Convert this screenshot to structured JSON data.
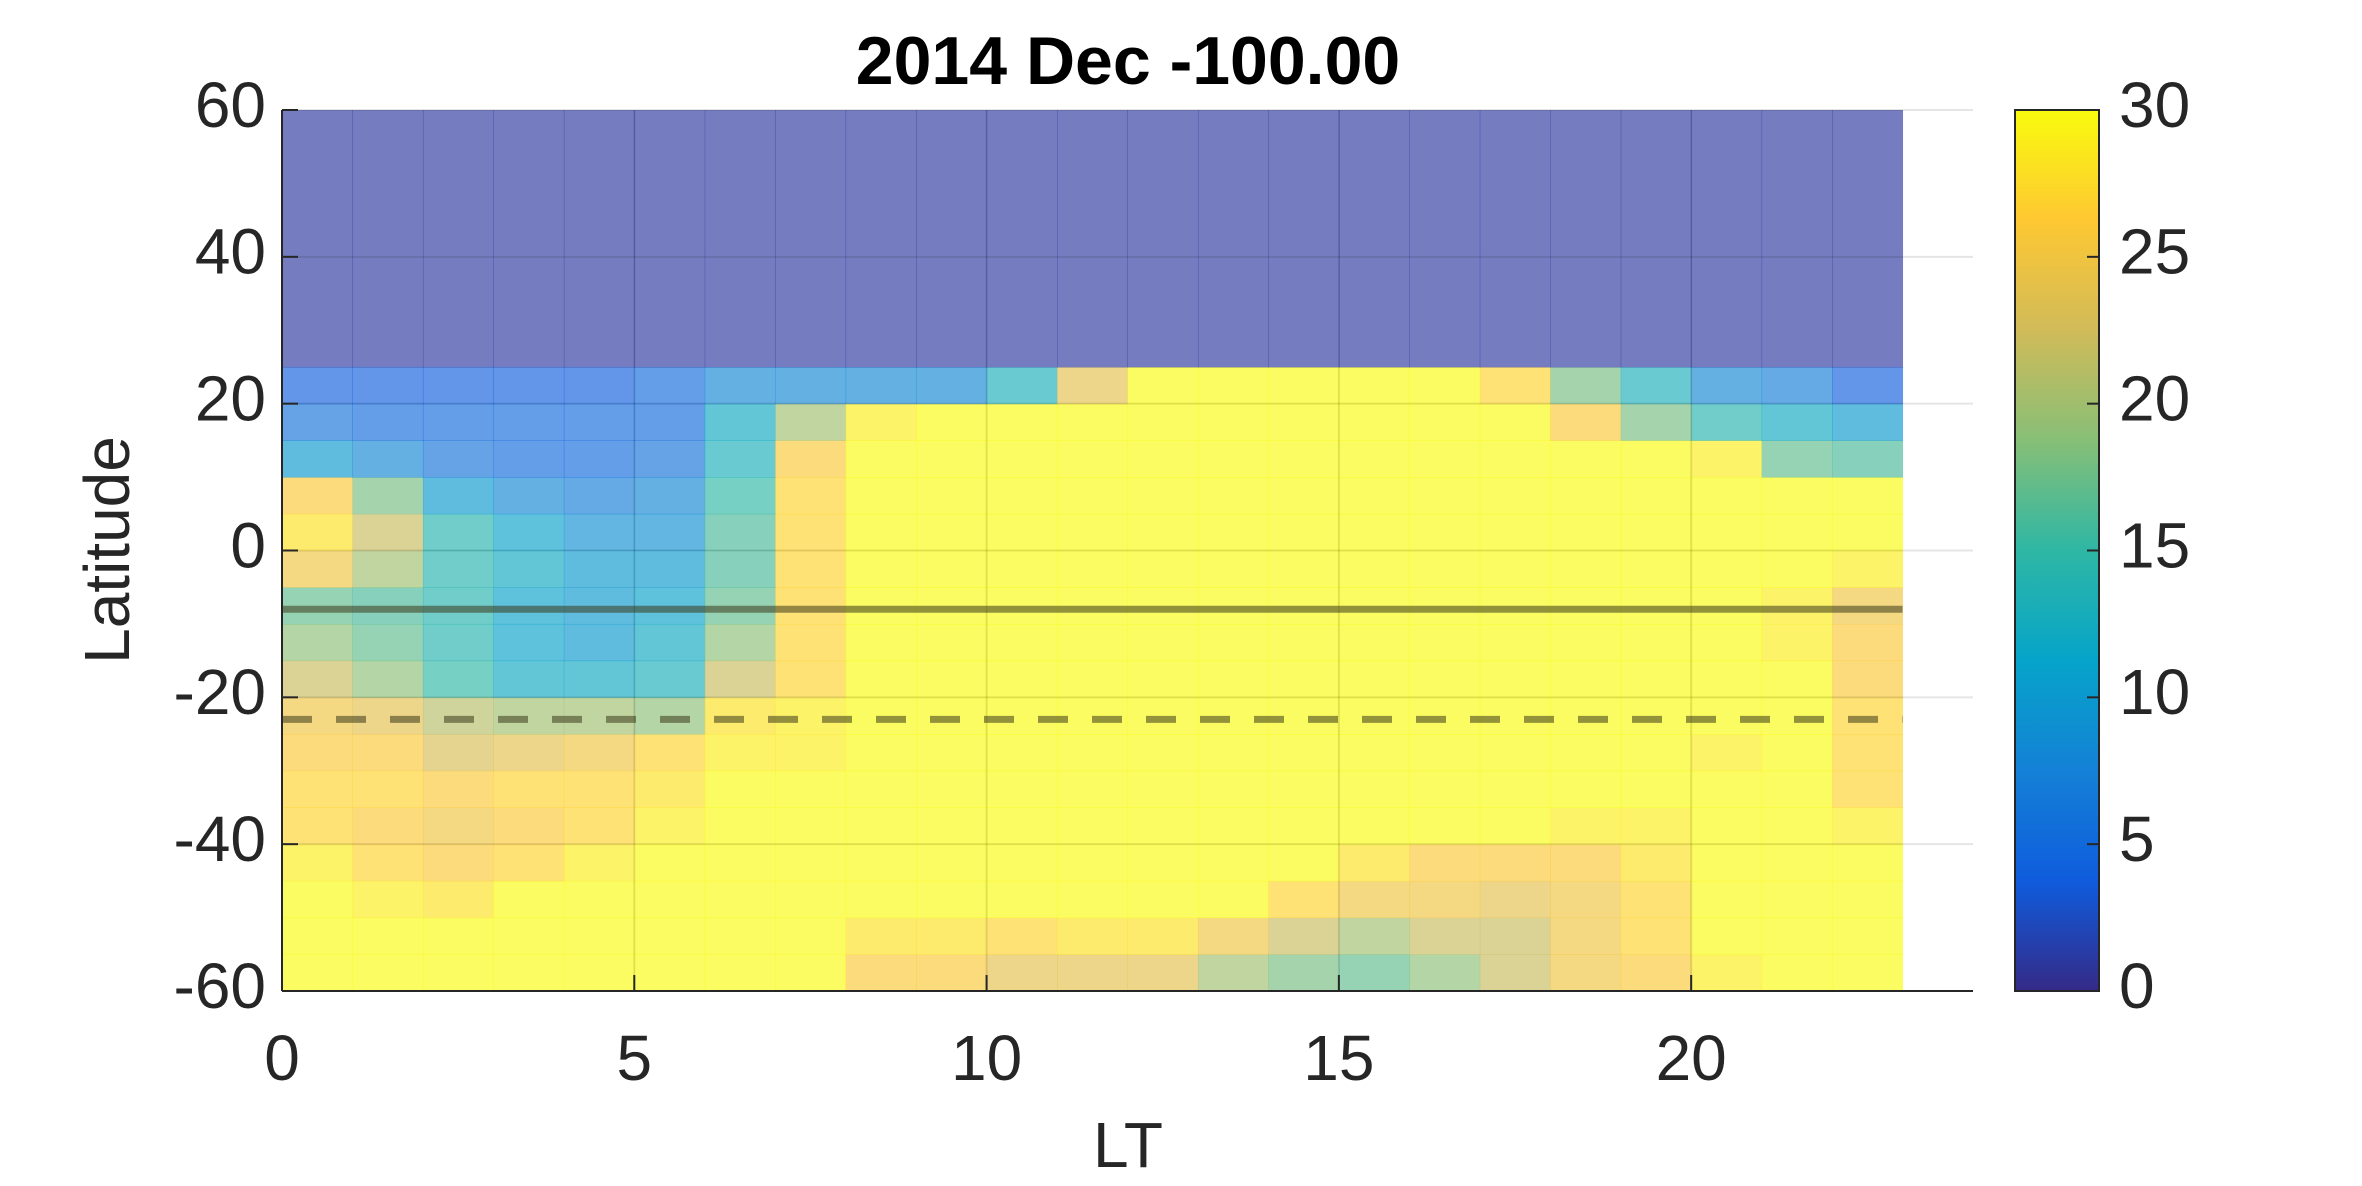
{
  "chart_data": {
    "type": "heatmap",
    "title": "2014 Dec   -100.00",
    "xlabel": "LT",
    "ylabel": "Latitude",
    "xbins": [
      0,
      1,
      2,
      3,
      4,
      5,
      6,
      7,
      8,
      9,
      10,
      11,
      12,
      13,
      14,
      15,
      16,
      17,
      18,
      19,
      20,
      21,
      22,
      23
    ],
    "ybins": [
      -60,
      -55,
      -50,
      -45,
      -40,
      -35,
      -30,
      -25,
      -20,
      -15,
      -10,
      -5,
      0,
      5,
      10,
      15,
      20,
      25,
      60
    ],
    "z": [
      [
        30,
        30,
        30,
        30,
        30,
        30,
        30,
        30,
        26,
        26,
        24,
        24,
        24,
        20,
        18,
        17,
        19,
        22,
        25,
        26,
        29,
        30,
        30
      ],
      [
        30,
        30,
        30,
        30,
        30,
        30,
        30,
        30,
        28,
        28,
        27,
        28,
        28,
        25,
        22,
        20,
        22,
        22,
        25,
        27,
        30,
        30,
        30
      ],
      [
        30,
        29,
        28,
        30,
        30,
        30,
        30,
        30,
        30,
        30,
        30,
        30,
        30,
        30,
        27,
        25,
        25,
        24,
        25,
        27,
        30,
        30,
        30
      ],
      [
        29,
        27,
        26,
        27,
        29,
        30,
        30,
        30,
        30,
        30,
        30,
        30,
        30,
        30,
        30,
        28,
        26,
        26,
        26,
        28,
        30,
        30,
        30
      ],
      [
        27,
        26,
        25,
        26,
        27,
        29,
        30,
        30,
        30,
        30,
        30,
        30,
        30,
        30,
        30,
        30,
        30,
        30,
        29,
        29,
        30,
        30,
        29
      ],
      [
        27,
        27,
        26,
        27,
        27,
        28,
        30,
        30,
        30,
        30,
        30,
        30,
        30,
        30,
        30,
        30,
        30,
        30,
        30,
        30,
        30,
        30,
        27
      ],
      [
        26,
        26,
        23,
        24,
        25,
        27,
        29,
        29,
        30,
        30,
        30,
        30,
        30,
        30,
        30,
        30,
        30,
        30,
        30,
        30,
        29,
        30,
        27
      ],
      [
        25,
        24,
        21,
        20,
        20,
        19,
        28,
        29,
        30,
        30,
        30,
        30,
        30,
        30,
        30,
        30,
        30,
        30,
        30,
        30,
        30,
        30,
        27
      ],
      [
        22,
        19,
        15,
        12,
        12,
        13,
        22,
        27,
        30,
        30,
        30,
        30,
        30,
        30,
        30,
        30,
        30,
        30,
        30,
        30,
        30,
        30,
        26
      ],
      [
        19,
        17,
        14,
        11,
        10,
        12,
        19,
        27,
        30,
        30,
        30,
        30,
        30,
        30,
        30,
        30,
        30,
        30,
        30,
        30,
        30,
        29,
        26
      ],
      [
        17,
        16,
        14,
        11,
        10,
        11,
        17,
        27,
        30,
        30,
        30,
        30,
        30,
        30,
        30,
        30,
        30,
        30,
        30,
        30,
        30,
        29,
        25
      ],
      [
        25,
        20,
        14,
        12,
        10,
        10,
        16,
        27,
        30,
        30,
        30,
        30,
        30,
        30,
        30,
        30,
        30,
        30,
        30,
        30,
        30,
        30,
        29
      ],
      [
        28,
        22,
        14,
        11,
        9,
        9,
        16,
        27,
        30,
        30,
        30,
        30,
        30,
        30,
        30,
        30,
        30,
        30,
        30,
        30,
        30,
        30,
        30
      ],
      [
        26,
        18,
        10,
        8,
        7,
        8,
        15,
        27,
        30,
        30,
        30,
        30,
        30,
        30,
        30,
        30,
        30,
        30,
        30,
        30,
        30,
        30,
        30
      ],
      [
        10,
        8,
        6,
        5,
        5,
        6,
        13,
        26,
        30,
        30,
        30,
        30,
        30,
        30,
        30,
        30,
        30,
        30,
        30,
        30,
        29,
        17,
        16
      ],
      [
        6,
        5,
        5,
        5,
        5,
        5,
        12,
        20,
        29,
        30,
        30,
        30,
        30,
        30,
        30,
        30,
        30,
        30,
        26,
        18,
        14,
        12,
        10
      ],
      [
        4,
        4,
        4,
        4,
        4,
        5,
        8,
        8,
        8,
        8,
        13,
        24,
        30,
        30,
        30,
        30,
        30,
        27,
        18,
        13,
        8,
        7,
        4
      ],
      [
        1,
        1,
        1,
        1,
        1,
        1,
        1,
        1,
        1,
        1,
        1,
        1,
        1,
        1,
        1,
        1,
        1,
        1,
        1,
        1,
        1,
        1,
        1
      ]
    ],
    "xlim": [
      0,
      24
    ],
    "xticks": [
      0,
      5,
      10,
      15,
      20
    ],
    "ylim": [
      -60,
      60
    ],
    "yticks": [
      -60,
      -40,
      -20,
      0,
      20,
      40,
      60
    ],
    "clim": [
      0,
      30
    ],
    "cticks": [
      0,
      5,
      10,
      15,
      20,
      25,
      30
    ],
    "colormap": [
      "#352a87",
      "#0f5cdd",
      "#1481d6",
      "#06a4ca",
      "#2eb7a4",
      "#87bf77",
      "#d1bb59",
      "#fec832",
      "#f9fb0e"
    ],
    "opacity": 0.65,
    "grid": true,
    "hlines": [
      {
        "y": -8,
        "style": "solid"
      },
      {
        "y": -23,
        "style": "dashed"
      }
    ]
  }
}
